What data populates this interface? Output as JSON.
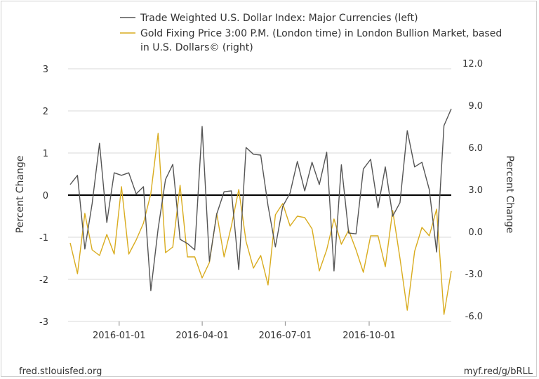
{
  "chart_data": {
    "type": "line",
    "legend": [
      {
        "text": "Trade Weighted U.S. Dollar Index: Major Currencies (left)",
        "color": "#555555"
      },
      {
        "text": "Gold Fixing Price 3:00 P.M. (London time) in London Bullion Market, based",
        "text2": "in U.S. Dollars© (right)",
        "color": "#d9ac1f"
      }
    ],
    "left_axis": {
      "label": "Percent Change",
      "ylim": [
        -3,
        3
      ],
      "ticks": [
        "3",
        "2",
        "1",
        "0",
        "-1",
        "-2",
        "-3"
      ],
      "tick_values": [
        3,
        2,
        1,
        0,
        -1,
        -2,
        -3
      ]
    },
    "right_axis": {
      "label": "Percent Change",
      "ylim": [
        -6,
        12
      ],
      "ticks": [
        "12.0",
        "9.0",
        "6.0",
        "3.0",
        "0.0",
        "-3.0",
        "-6.0"
      ],
      "tick_values": [
        12,
        9,
        6,
        3,
        0,
        -3,
        -6
      ]
    },
    "x_axis": {
      "start_date": "2015-11-06",
      "end_date": "2016-12-30",
      "ticks": [
        {
          "label": "2016-01-01",
          "date": "2016-01-01"
        },
        {
          "label": "2016-04-01",
          "date": "2016-04-01"
        },
        {
          "label": "2016-07-01",
          "date": "2016-07-01"
        },
        {
          "label": "2016-10-01",
          "date": "2016-10-01"
        }
      ]
    },
    "series": [
      {
        "name": "Trade Weighted U.S. Dollar Index: Major Currencies (left)",
        "axis": "left",
        "color": "#555555",
        "values": [
          0.25,
          0.47,
          -1.28,
          -0.2,
          1.23,
          -0.65,
          0.53,
          0.47,
          0.53,
          0.03,
          0.2,
          -2.27,
          -0.8,
          0.37,
          0.73,
          -1.05,
          -1.15,
          -1.3,
          1.63,
          -1.57,
          -0.45,
          0.08,
          0.1,
          -1.77,
          1.13,
          0.97,
          0.95,
          -0.25,
          -1.23,
          -0.27,
          0.05,
          0.8,
          0.1,
          0.78,
          0.25,
          1.02,
          -1.8,
          0.72,
          -0.9,
          -0.92,
          0.62,
          0.85,
          -0.3,
          0.67,
          -0.5,
          -0.18,
          1.53,
          0.67,
          0.78,
          0.13,
          -1.35,
          1.65,
          2.05
        ]
      },
      {
        "name": "Gold Fixing Price 3:00 P.M. (London time) in London Bullion Market, based in U.S. Dollars© (right)",
        "axis": "right",
        "color": "#d9ac1f",
        "values": [
          -0.4,
          -2.6,
          1.7,
          -0.9,
          -1.3,
          0.2,
          -1.2,
          3.6,
          -1.2,
          -0.2,
          1.0,
          3.1,
          7.4,
          -1.1,
          -0.7,
          3.7,
          -1.4,
          -1.4,
          -2.9,
          -1.8,
          1.7,
          -1.4,
          0.8,
          3.4,
          -0.3,
          -2.2,
          -1.3,
          -3.4,
          1.6,
          2.4,
          0.8,
          1.5,
          1.4,
          0.6,
          -2.4,
          -0.9,
          1.3,
          -0.5,
          0.5,
          -0.9,
          -2.5,
          0.1,
          0.1,
          -2.1,
          1.9,
          -1.5,
          -5.2,
          -1.0,
          0.7,
          0.1,
          2.0,
          -5.5,
          -2.4
        ]
      }
    ],
    "grid": true,
    "legend_placement": "top"
  },
  "footer": {
    "source": "fred.stlouisfed.org",
    "link": "myf.red/g/bRLL"
  }
}
